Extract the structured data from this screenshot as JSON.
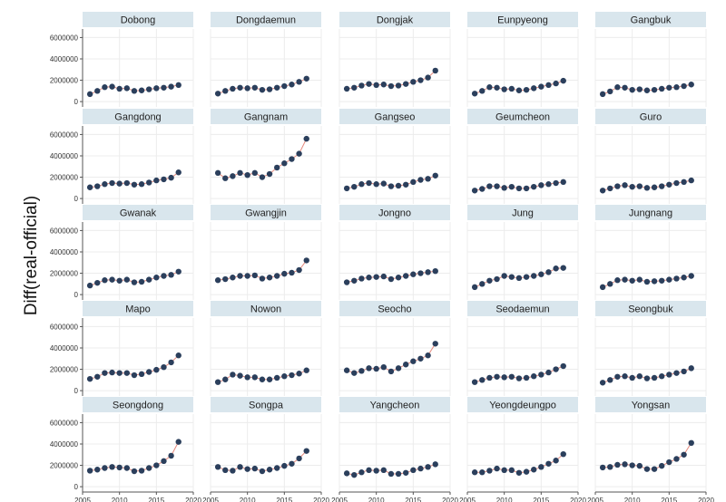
{
  "chart_data": {
    "type": "line",
    "ylabel": "Diff(real-official)",
    "xlabel": "",
    "x": [
      2006,
      2007,
      2008,
      2009,
      2010,
      2011,
      2012,
      2013,
      2014,
      2015,
      2016,
      2017,
      2018
    ],
    "xlim": [
      2005,
      2020
    ],
    "ylim": [
      -500000,
      6800000
    ],
    "x_ticks": [
      2005,
      2010,
      2015,
      2020
    ],
    "y_ticks": [
      0,
      2000000,
      4000000,
      6000000
    ],
    "x_tick_labels": [
      "2005",
      "2010",
      "2015",
      "2020"
    ],
    "y_tick_labels": [
      "0",
      "2000000",
      "4000000",
      "6000000"
    ],
    "grid": true,
    "colors": {
      "strip": "#d9e6ed",
      "marker": "#2b3f5c",
      "line": "#e58a7e",
      "grid": "#ececec",
      "axis": "#555555"
    },
    "series": [
      {
        "name": "Dobong",
        "values": [
          700000,
          1000000,
          1350000,
          1400000,
          1200000,
          1250000,
          1000000,
          1050000,
          1150000,
          1250000,
          1300000,
          1400000,
          1550000
        ]
      },
      {
        "name": "Dongdaemun",
        "values": [
          750000,
          1000000,
          1200000,
          1300000,
          1250000,
          1300000,
          1100000,
          1150000,
          1300000,
          1450000,
          1600000,
          1850000,
          2150000
        ]
      },
      {
        "name": "Dongjak",
        "values": [
          1200000,
          1300000,
          1500000,
          1650000,
          1550000,
          1600000,
          1450000,
          1500000,
          1650000,
          1850000,
          2000000,
          2250000,
          2900000
        ]
      },
      {
        "name": "Eunpyeong",
        "values": [
          750000,
          1000000,
          1350000,
          1300000,
          1150000,
          1200000,
          1050000,
          1100000,
          1250000,
          1400000,
          1550000,
          1700000,
          1950000
        ]
      },
      {
        "name": "Gangbuk",
        "values": [
          700000,
          950000,
          1350000,
          1300000,
          1100000,
          1150000,
          1050000,
          1100000,
          1200000,
          1300000,
          1350000,
          1450000,
          1600000
        ]
      },
      {
        "name": "Gangdong",
        "values": [
          1050000,
          1150000,
          1350000,
          1450000,
          1400000,
          1450000,
          1300000,
          1350000,
          1500000,
          1700000,
          1800000,
          1950000,
          2450000
        ]
      },
      {
        "name": "Gangnam",
        "values": [
          2400000,
          1900000,
          2100000,
          2400000,
          2200000,
          2400000,
          2000000,
          2300000,
          2900000,
          3300000,
          3700000,
          4200000,
          5600000
        ]
      },
      {
        "name": "Gangseo",
        "values": [
          950000,
          1100000,
          1350000,
          1450000,
          1350000,
          1400000,
          1150000,
          1200000,
          1300000,
          1550000,
          1750000,
          1850000,
          2150000
        ]
      },
      {
        "name": "Geumcheon",
        "values": [
          750000,
          900000,
          1150000,
          1150000,
          1000000,
          1100000,
          950000,
          950000,
          1100000,
          1250000,
          1350000,
          1450000,
          1550000
        ]
      },
      {
        "name": "Guro",
        "values": [
          750000,
          950000,
          1150000,
          1250000,
          1100000,
          1150000,
          1000000,
          1050000,
          1150000,
          1300000,
          1450000,
          1550000,
          1700000
        ]
      },
      {
        "name": "Gwanak",
        "values": [
          850000,
          1100000,
          1350000,
          1400000,
          1300000,
          1400000,
          1150000,
          1200000,
          1400000,
          1600000,
          1750000,
          1850000,
          2150000
        ]
      },
      {
        "name": "Gwangjin",
        "values": [
          1350000,
          1450000,
          1600000,
          1750000,
          1750000,
          1800000,
          1500000,
          1600000,
          1750000,
          1950000,
          2050000,
          2300000,
          3200000
        ]
      },
      {
        "name": "Jongno",
        "values": [
          1150000,
          1300000,
          1500000,
          1600000,
          1650000,
          1700000,
          1450000,
          1600000,
          1750000,
          1900000,
          2000000,
          2100000,
          2200000
        ]
      },
      {
        "name": "Jung",
        "values": [
          700000,
          1000000,
          1300000,
          1450000,
          1750000,
          1650000,
          1550000,
          1650000,
          1750000,
          1900000,
          2100000,
          2450000,
          2500000
        ]
      },
      {
        "name": "Jungnang",
        "values": [
          700000,
          1000000,
          1350000,
          1400000,
          1300000,
          1400000,
          1200000,
          1250000,
          1300000,
          1400000,
          1500000,
          1600000,
          1750000
        ]
      },
      {
        "name": "Mapo",
        "values": [
          1100000,
          1300000,
          1650000,
          1700000,
          1650000,
          1650000,
          1450000,
          1550000,
          1750000,
          1950000,
          2200000,
          2650000,
          3300000
        ]
      },
      {
        "name": "Nowon",
        "values": [
          800000,
          1050000,
          1500000,
          1400000,
          1250000,
          1250000,
          1050000,
          1050000,
          1200000,
          1350000,
          1450000,
          1600000,
          1900000
        ]
      },
      {
        "name": "Seocho",
        "values": [
          1900000,
          1650000,
          1850000,
          2100000,
          2050000,
          2200000,
          1800000,
          2100000,
          2450000,
          2750000,
          3000000,
          3300000,
          4400000
        ]
      },
      {
        "name": "Seodaemun",
        "values": [
          800000,
          1000000,
          1200000,
          1300000,
          1250000,
          1300000,
          1150000,
          1200000,
          1350000,
          1500000,
          1700000,
          2000000,
          2300000
        ]
      },
      {
        "name": "Seongbuk",
        "values": [
          750000,
          1000000,
          1300000,
          1350000,
          1200000,
          1350000,
          1150000,
          1200000,
          1350000,
          1500000,
          1650000,
          1800000,
          2100000
        ]
      },
      {
        "name": "Seongdong",
        "values": [
          1500000,
          1600000,
          1750000,
          1850000,
          1800000,
          1750000,
          1450000,
          1500000,
          1750000,
          2000000,
          2400000,
          2900000,
          4200000
        ]
      },
      {
        "name": "Songpa",
        "values": [
          1850000,
          1550000,
          1500000,
          1850000,
          1650000,
          1700000,
          1450000,
          1600000,
          1750000,
          1950000,
          2150000,
          2650000,
          3350000
        ]
      },
      {
        "name": "Yangcheon",
        "values": [
          1250000,
          1100000,
          1350000,
          1550000,
          1500000,
          1550000,
          1200000,
          1200000,
          1300000,
          1550000,
          1700000,
          1850000,
          2100000
        ]
      },
      {
        "name": "Yeongdeungpo",
        "values": [
          1350000,
          1350000,
          1500000,
          1700000,
          1550000,
          1550000,
          1300000,
          1400000,
          1600000,
          1850000,
          2150000,
          2450000,
          3050000
        ]
      },
      {
        "name": "Yongsan",
        "values": [
          1800000,
          1850000,
          2050000,
          2100000,
          2000000,
          1950000,
          1650000,
          1650000,
          1950000,
          2300000,
          2600000,
          3000000,
          4100000
        ]
      }
    ]
  }
}
